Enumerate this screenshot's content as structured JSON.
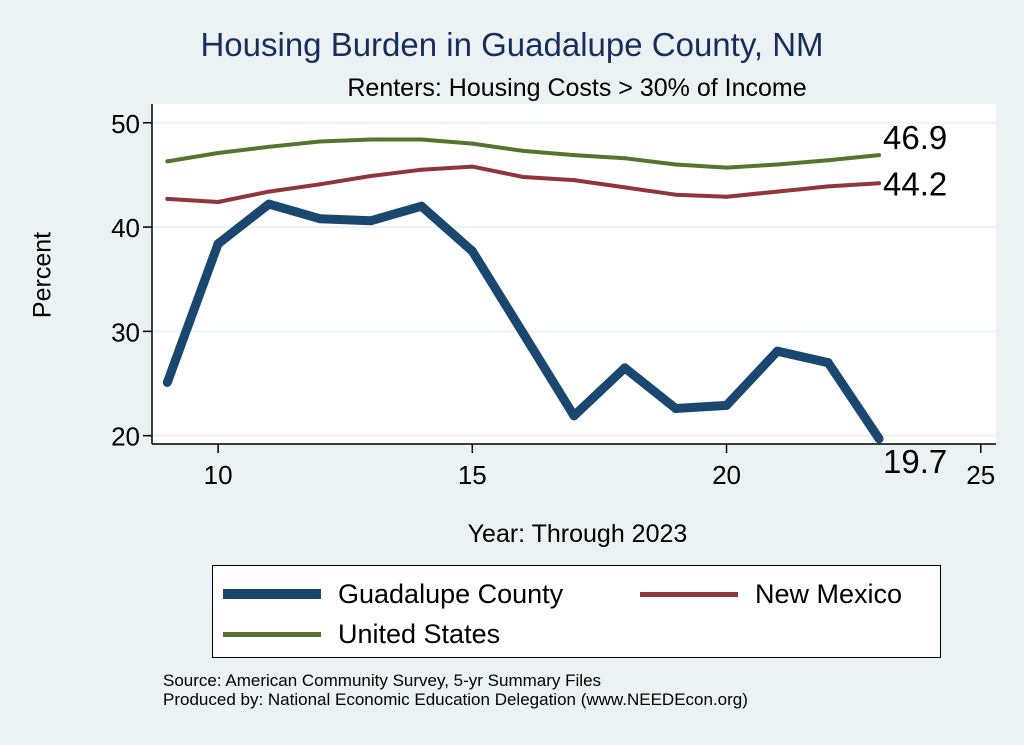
{
  "chart_data": {
    "type": "line",
    "title": "Housing Burden in Guadalupe County, NM",
    "subtitle": "Renters: Housing Costs > 30% of Income",
    "xlabel": "Year: Through 2023",
    "ylabel": "Percent",
    "xlim": [
      8.7,
      25.3
    ],
    "ylim": [
      19.2,
      51.8
    ],
    "xticks": [
      10,
      15,
      20,
      25
    ],
    "yticks": [
      20,
      30,
      40,
      50
    ],
    "grid": true,
    "legend_position": "bottom",
    "x": [
      9,
      10,
      11,
      12,
      13,
      14,
      15,
      16,
      17,
      18,
      19,
      20,
      21,
      22,
      23
    ],
    "series": [
      {
        "name": "Guadalupe County",
        "color": "#1a476f",
        "values": [
          25.1,
          38.4,
          42.2,
          40.8,
          40.6,
          42.0,
          37.7,
          29.8,
          21.9,
          26.5,
          22.6,
          22.9,
          28.1,
          27.0,
          19.7
        ],
        "end_label": "19.7"
      },
      {
        "name": "New Mexico",
        "color": "#90353b",
        "values": [
          42.7,
          42.4,
          43.4,
          44.1,
          44.9,
          45.5,
          45.8,
          44.8,
          44.5,
          43.8,
          43.1,
          42.9,
          43.4,
          43.9,
          44.2
        ],
        "end_label": "44.2"
      },
      {
        "name": "United States",
        "color": "#55752f",
        "values": [
          46.3,
          47.1,
          47.7,
          48.2,
          48.4,
          48.4,
          48.0,
          47.3,
          46.9,
          46.6,
          46.0,
          45.7,
          46.0,
          46.4,
          46.9
        ],
        "end_label": "46.9"
      }
    ]
  },
  "source_lines": [
    "Source: American Community Survey, 5-yr Summary Files",
    "Produced by: National Economic Education Delegation (www.NEEDEcon.org)"
  ]
}
